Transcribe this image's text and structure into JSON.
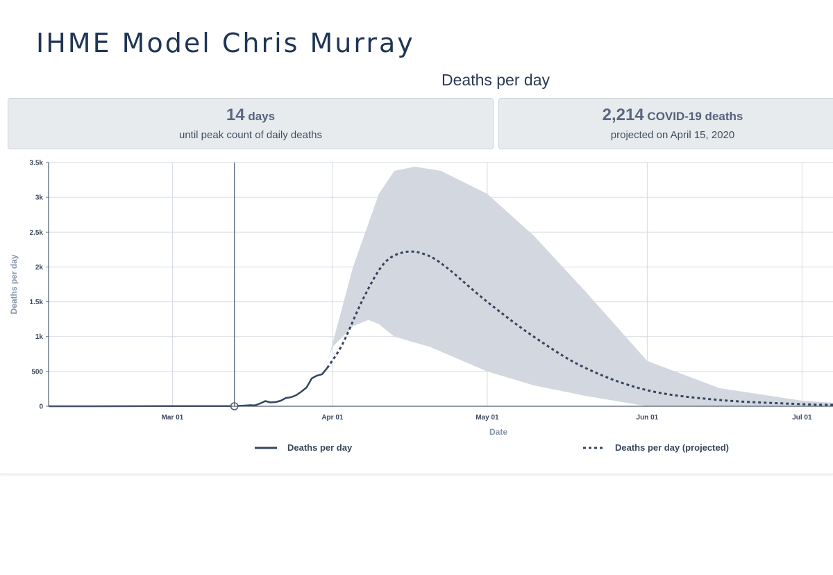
{
  "slide_title": "IHME Model Chris Murray",
  "stats": {
    "peak_days_value": "14",
    "peak_days_unit": "days",
    "peak_days_caption": "until peak count of daily deaths",
    "deaths_value": "2,214",
    "deaths_unit": "COVID-19 deaths",
    "deaths_caption": "projected on April 15, 2020"
  },
  "colors": {
    "observed_line": "#34455f",
    "projected_line": "#34455f",
    "uncertainty_band": "#d3d7df",
    "grid": "#d5dae1"
  },
  "chart_data": {
    "type": "line",
    "title": "Deaths per day",
    "xlabel": "Date",
    "ylabel": "Deaths per day",
    "x_start": "2020-02-06",
    "xlim": [
      "2020-02-06",
      "2020-07-07"
    ],
    "ylim": [
      0,
      3500
    ],
    "grid": true,
    "legend_position": "bottom",
    "x_tick_labels": [
      "Mar 01",
      "Apr 01",
      "May 01",
      "Jun 01",
      "Jul 01"
    ],
    "x_tick_dates": [
      "2020-03-01",
      "2020-04-01",
      "2020-05-01",
      "2020-06-01",
      "2020-07-01"
    ],
    "y_ticks": [
      0,
      500,
      1000,
      1500,
      2000,
      2500,
      3000,
      3500
    ],
    "y_tick_labels": [
      "0",
      "500",
      "1k",
      "1.5k",
      "2k",
      "2.5k",
      "3k",
      "3.5k"
    ],
    "marker": {
      "date": "2020-03-13",
      "value": 0
    },
    "series": [
      {
        "name": "Deaths per day",
        "style": "solid",
        "points": [
          [
            "2020-02-06",
            0
          ],
          [
            "2020-02-15",
            0
          ],
          [
            "2020-03-01",
            2
          ],
          [
            "2020-03-13",
            3
          ],
          [
            "2020-03-15",
            10
          ],
          [
            "2020-03-16",
            15
          ],
          [
            "2020-03-17",
            13
          ],
          [
            "2020-03-18",
            40
          ],
          [
            "2020-03-19",
            75
          ],
          [
            "2020-03-20",
            55
          ],
          [
            "2020-03-21",
            60
          ],
          [
            "2020-03-22",
            80
          ],
          [
            "2020-03-23",
            120
          ],
          [
            "2020-03-24",
            130
          ],
          [
            "2020-03-25",
            160
          ],
          [
            "2020-03-26",
            210
          ],
          [
            "2020-03-27",
            270
          ],
          [
            "2020-03-28",
            400
          ],
          [
            "2020-03-29",
            440
          ],
          [
            "2020-03-30",
            460
          ],
          [
            "2020-03-31",
            550
          ]
        ]
      },
      {
        "name": "Deaths per day (projected)",
        "style": "dashed",
        "points": [
          [
            "2020-03-31",
            550
          ],
          [
            "2020-04-03",
            900
          ],
          [
            "2020-04-07",
            1550
          ],
          [
            "2020-04-11",
            2050
          ],
          [
            "2020-04-15",
            2214
          ],
          [
            "2020-04-19",
            2180
          ],
          [
            "2020-04-23",
            2000
          ],
          [
            "2020-05-01",
            1500
          ],
          [
            "2020-05-10",
            1000
          ],
          [
            "2020-05-20",
            550
          ],
          [
            "2020-06-01",
            230
          ],
          [
            "2020-06-15",
            90
          ],
          [
            "2020-07-01",
            30
          ],
          [
            "2020-07-07",
            20
          ]
        ]
      }
    ],
    "uncertainty_band": {
      "upper": [
        [
          "2020-03-31",
          620
        ],
        [
          "2020-04-05",
          2000
        ],
        [
          "2020-04-10",
          3050
        ],
        [
          "2020-04-13",
          3380
        ],
        [
          "2020-04-17",
          3440
        ],
        [
          "2020-04-22",
          3380
        ],
        [
          "2020-05-01",
          3050
        ],
        [
          "2020-05-10",
          2450
        ],
        [
          "2020-05-20",
          1650
        ],
        [
          "2020-06-01",
          650
        ],
        [
          "2020-06-15",
          260
        ],
        [
          "2020-07-01",
          80
        ],
        [
          "2020-07-07",
          50
        ]
      ],
      "lower": [
        [
          "2020-07-07",
          0
        ],
        [
          "2020-06-01",
          0
        ],
        [
          "2020-05-20",
          150
        ],
        [
          "2020-05-10",
          300
        ],
        [
          "2020-05-01",
          500
        ],
        [
          "2020-04-20",
          850
        ],
        [
          "2020-04-13",
          1000
        ],
        [
          "2020-04-10",
          1180
        ],
        [
          "2020-04-08",
          1240
        ],
        [
          "2020-04-05",
          1150
        ],
        [
          "2020-04-01",
          850
        ],
        [
          "2020-03-31",
          620
        ]
      ]
    }
  }
}
